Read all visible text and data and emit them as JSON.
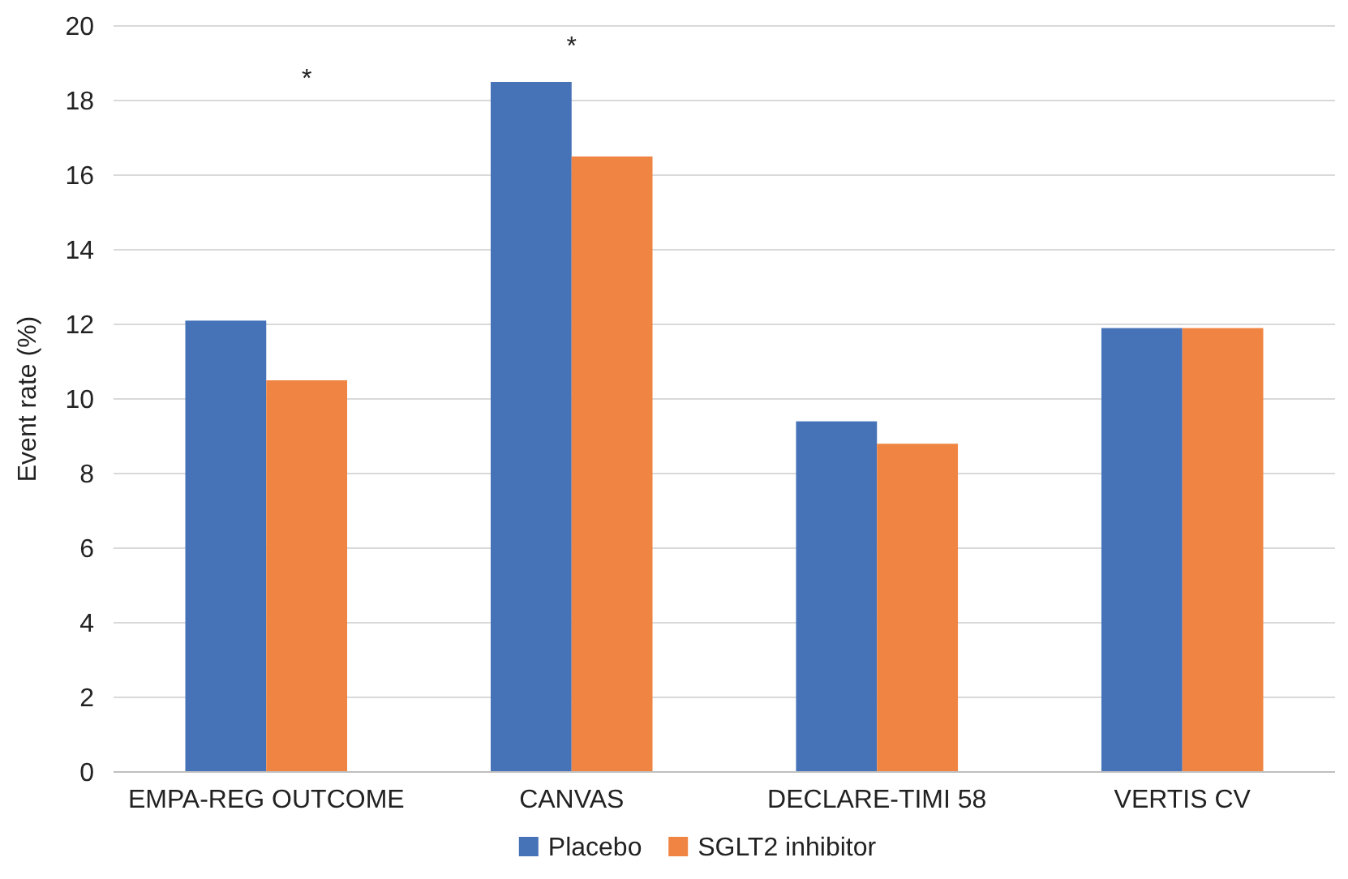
{
  "chart_data": {
    "type": "bar",
    "ylabel": "Event rate (%)",
    "categories": [
      "EMPA-REG OUTCOME",
      "CANVAS",
      "DECLARE-TIMI 58",
      "VERTIS CV"
    ],
    "series": [
      {
        "name": "Placebo",
        "color": "#4672b8",
        "values": [
          12.1,
          18.5,
          9.4,
          11.9
        ]
      },
      {
        "name": "SGLT2 inhibitor",
        "color": "#f08543",
        "values": [
          10.5,
          16.5,
          8.8,
          11.9
        ]
      }
    ],
    "ylim": [
      0,
      20
    ],
    "yticks": [
      0,
      2,
      4,
      6,
      8,
      10,
      12,
      14,
      16,
      18,
      20
    ],
    "grid": "y",
    "legend": "bottom",
    "annotations": [
      "*",
      "*"
    ]
  }
}
